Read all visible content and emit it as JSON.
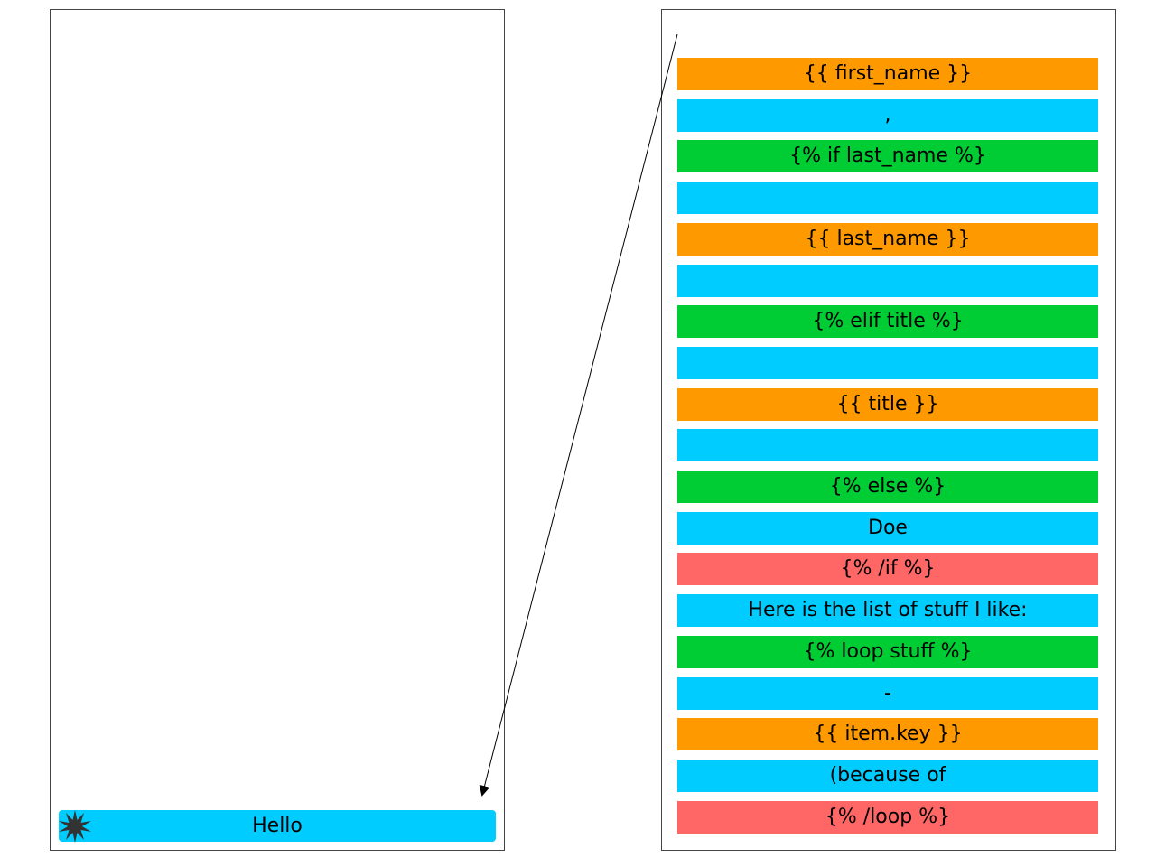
{
  "colors": {
    "variable": "#ff9900",
    "text": "#00ccff",
    "control": "#00cc33",
    "end": "#ff6666"
  },
  "left_panel": {
    "current_token": "Hello",
    "marker_icon": "burst-icon"
  },
  "right_panel": {
    "tokens": [
      {
        "text": "{{ first_name }}",
        "kind": "variable"
      },
      {
        "text": ",",
        "kind": "text"
      },
      {
        "text": "{% if last_name %}",
        "kind": "control"
      },
      {
        "text": "",
        "kind": "text"
      },
      {
        "text": "{{ last_name }}",
        "kind": "variable"
      },
      {
        "text": "",
        "kind": "text"
      },
      {
        "text": "{% elif title %}",
        "kind": "control"
      },
      {
        "text": "",
        "kind": "text"
      },
      {
        "text": "{{ title }}",
        "kind": "variable"
      },
      {
        "text": "",
        "kind": "text"
      },
      {
        "text": "{% else %}",
        "kind": "control"
      },
      {
        "text": "Doe",
        "kind": "text"
      },
      {
        "text": "{% /if %}",
        "kind": "end"
      },
      {
        "text": "Here is the list of stuff I like:",
        "kind": "text"
      },
      {
        "text": "{% loop stuff %}",
        "kind": "control"
      },
      {
        "text": "-",
        "kind": "text"
      },
      {
        "text": "{{ item.key }}",
        "kind": "variable"
      },
      {
        "text": "(because of",
        "kind": "text"
      },
      {
        "text": "{% /loop %}",
        "kind": "end"
      }
    ]
  },
  "arrow_icon": "arrow-icon"
}
